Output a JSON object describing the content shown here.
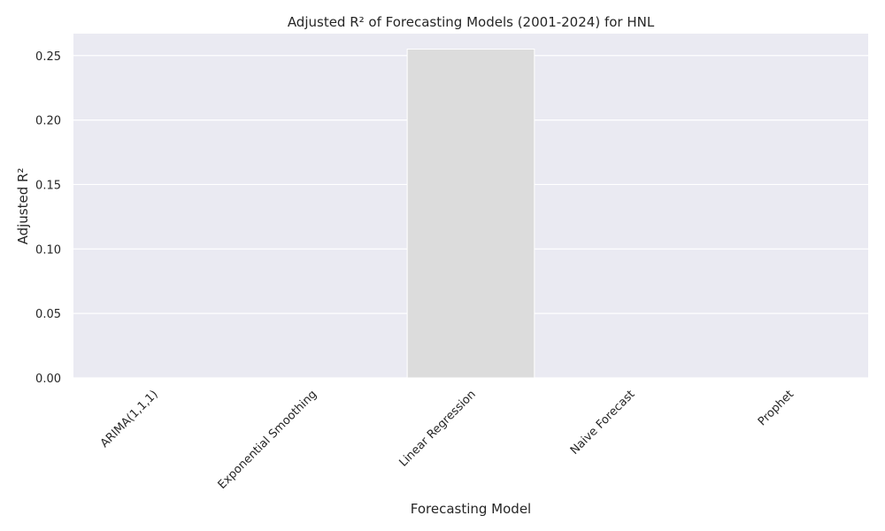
{
  "chart_data": {
    "type": "bar",
    "title": "Adjusted R² of Forecasting Models (2001-2024) for HNL",
    "xlabel": "Forecasting Model",
    "ylabel": "Adjusted R²",
    "categories": [
      "ARIMA(1,1,1)",
      "Exponential Smoothing",
      "Linear Regression",
      "Naive Forecast",
      "Prophet"
    ],
    "values": [
      0.0,
      0.0,
      0.255,
      0.0,
      0.0
    ],
    "ylim": [
      0,
      0.267
    ],
    "yticks": [
      0.0,
      0.05,
      0.1,
      0.15,
      0.2,
      0.25
    ],
    "ytick_labels": [
      "0.00",
      "0.05",
      "0.10",
      "0.15",
      "0.20",
      "0.25"
    ],
    "xtick_rotation_deg": 45,
    "grid": true,
    "colors": {
      "plot_background": "#eaeaf2",
      "grid": "#ffffff",
      "bar": "#dcdcdc",
      "bar_edge": "#ffffff"
    }
  }
}
